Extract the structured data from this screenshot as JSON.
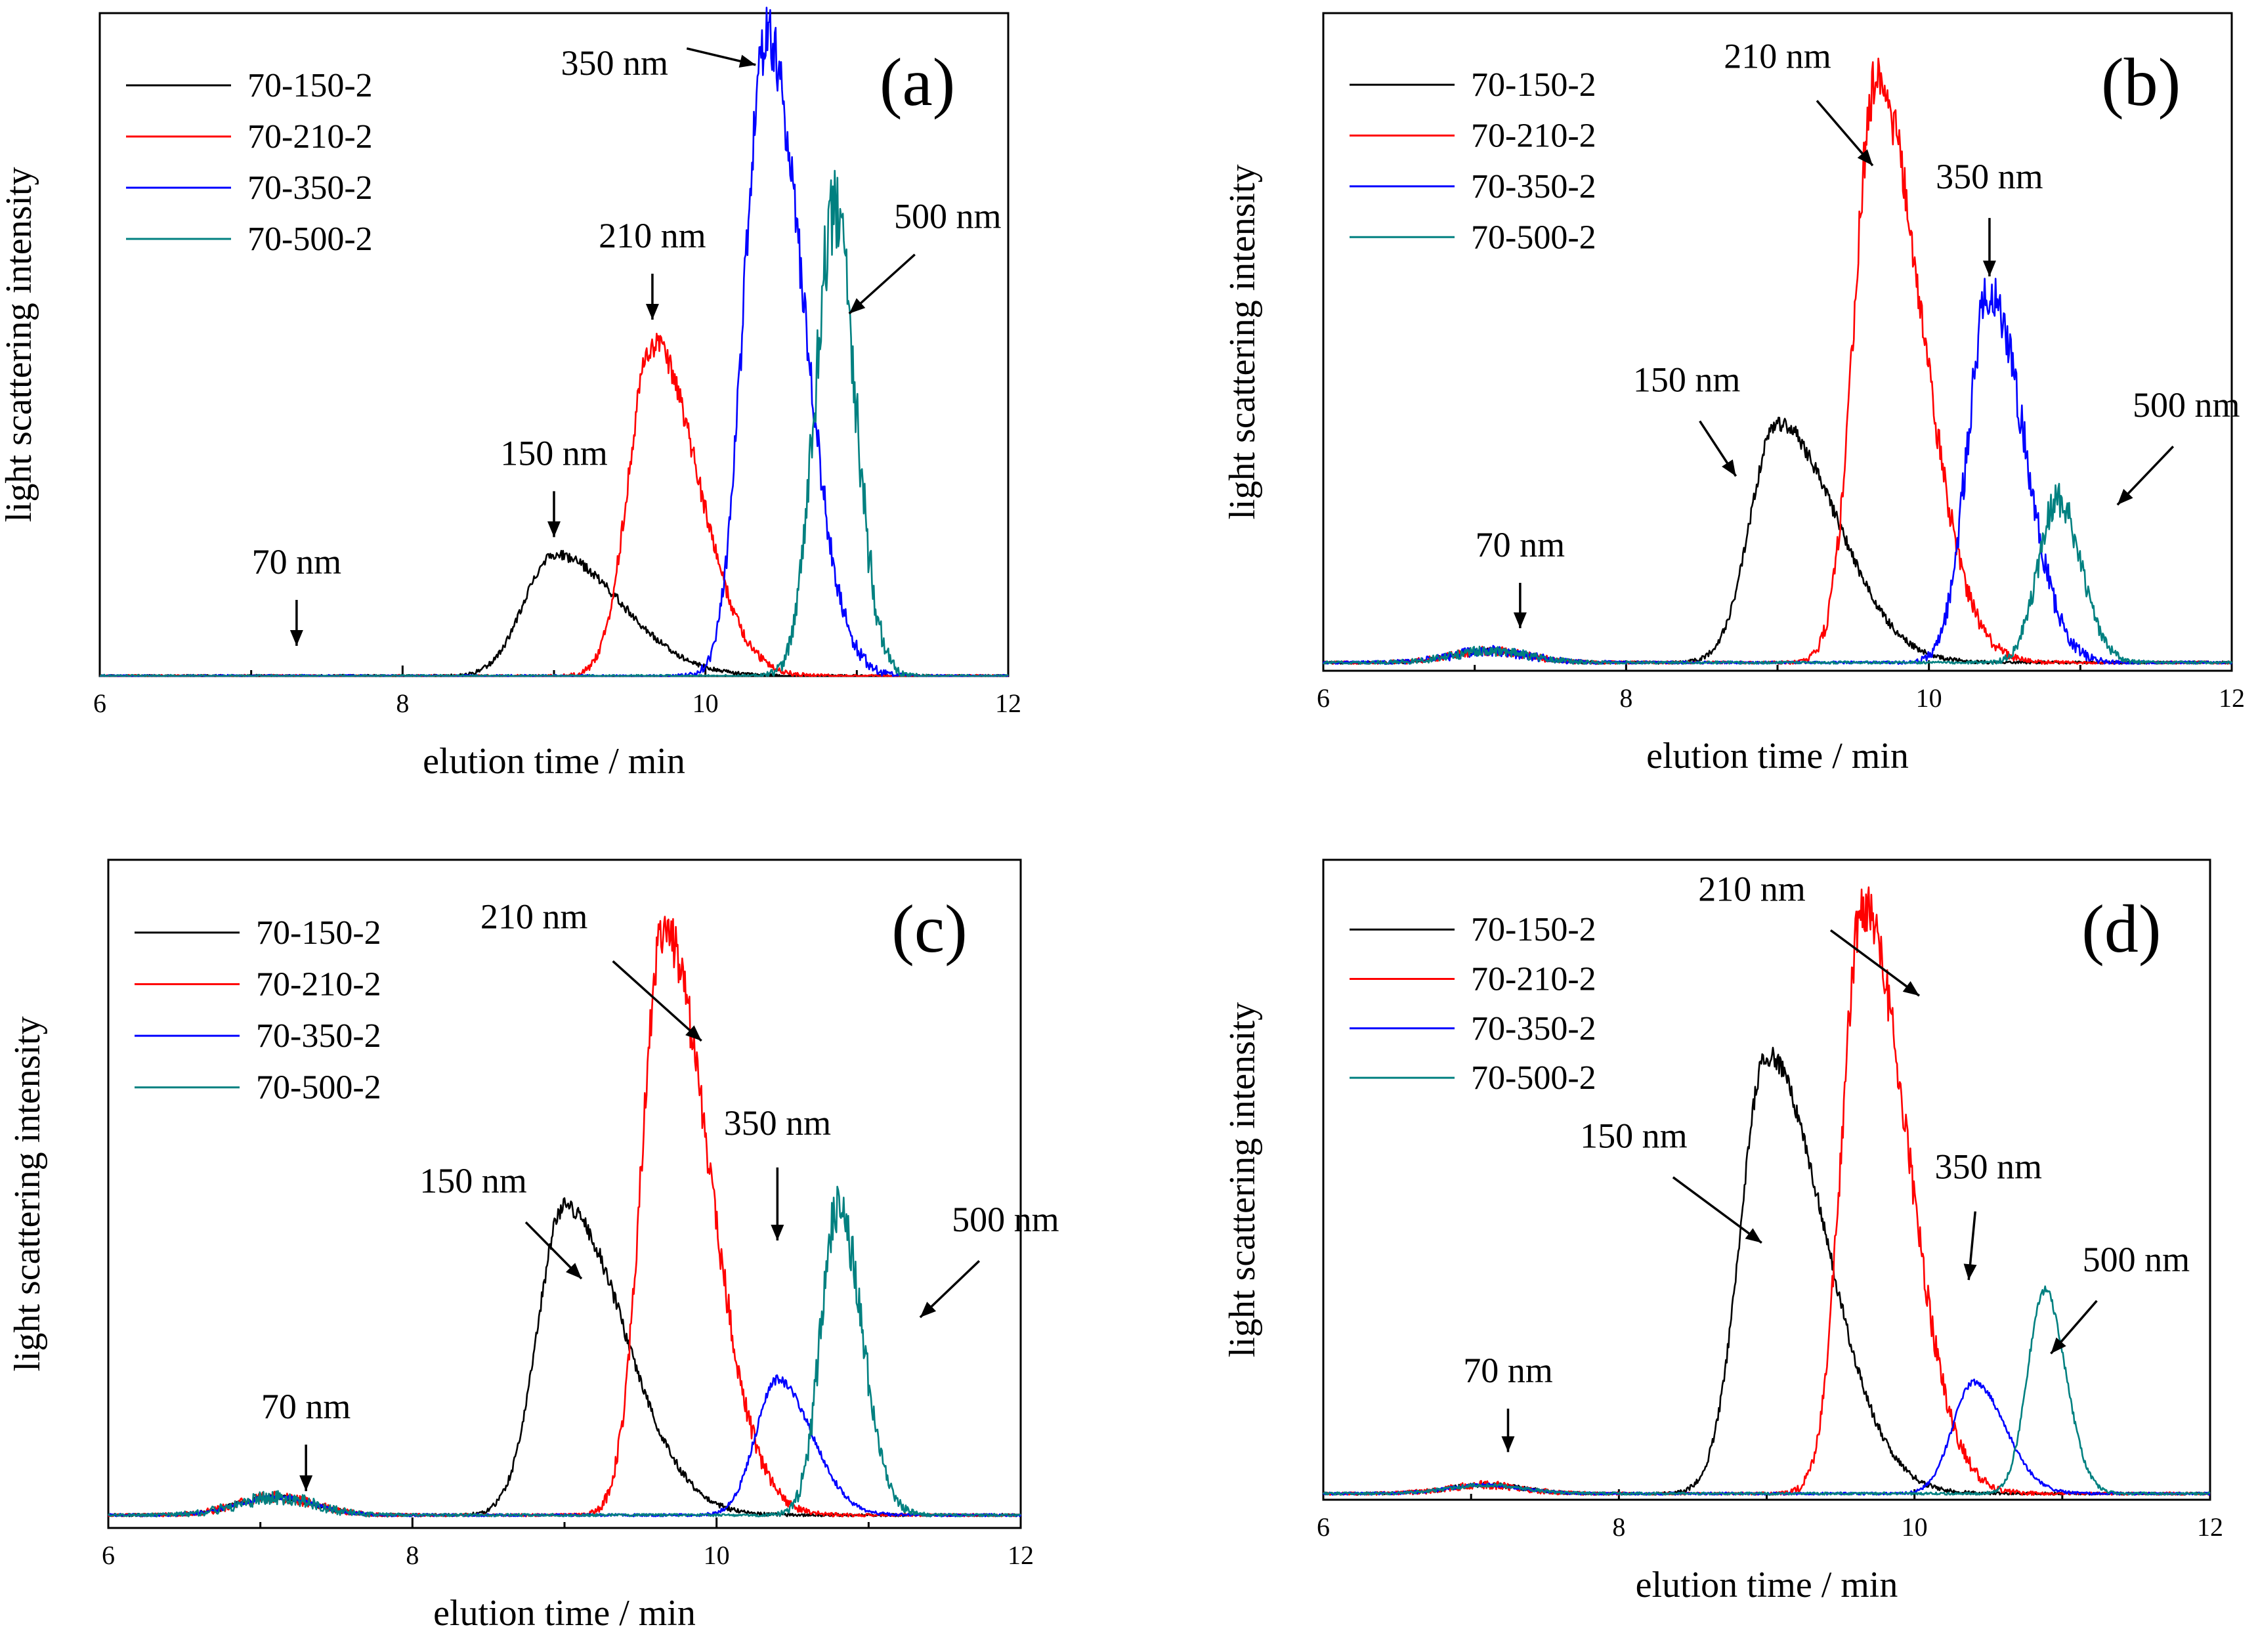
{
  "colors": {
    "70-150-2": "#000000",
    "70-210-2": "#ff0000",
    "70-350-2": "#0000ff",
    "70-500-2": "#008080"
  },
  "chart_data": [
    {
      "id": "a",
      "type": "line",
      "panel_label": "(a)",
      "xlabel": "elution time / min",
      "ylabel": "light scattering intensity",
      "xlim": [
        6,
        12
      ],
      "x_ticks": [
        6,
        8,
        10,
        12
      ],
      "ylim": [
        0,
        1.0
      ],
      "legend": [
        "70-150-2",
        "70-210-2",
        "70-350-2",
        "70-500-2"
      ],
      "legend_position": "top-left",
      "series": [
        {
          "name": "70-150-2",
          "peak_x": 9.0,
          "peak_y": 0.19,
          "baseline_y": 0.0,
          "rise": 0.28,
          "tail": 0.62,
          "noise": 0.006
        },
        {
          "name": "70-210-2",
          "peak_x": 9.65,
          "peak_y": 0.52,
          "baseline_y": 0.0,
          "rise": 0.22,
          "tail": 0.42,
          "noise": 0.02
        },
        {
          "name": "70-350-2",
          "peak_x": 10.4,
          "peak_y": 1.0,
          "baseline_y": 0.0,
          "rise": 0.2,
          "tail": 0.34,
          "noise": 0.05
        },
        {
          "name": "70-500-2",
          "peak_x": 10.85,
          "peak_y": 0.72,
          "baseline_y": 0.0,
          "rise": 0.18,
          "tail": 0.2,
          "noise": 0.07
        }
      ],
      "annotations": [
        {
          "text": "70 nm",
          "x": 7.3,
          "y": 0.16
        },
        {
          "text": "150 nm",
          "x": 9.0,
          "y": 0.33
        },
        {
          "text": "210 nm",
          "x": 9.65,
          "y": 0.67
        },
        {
          "text": "350 nm",
          "x": 9.4,
          "y": 0.94
        },
        {
          "text": "500 nm",
          "x": 11.6,
          "y": 0.7
        }
      ]
    },
    {
      "id": "b",
      "type": "line",
      "panel_label": "(b)",
      "xlabel": "elution time / min",
      "ylabel": "light scattering intensity",
      "xlim": [
        6,
        12
      ],
      "x_ticks": [
        6,
        8,
        10,
        12
      ],
      "ylim": [
        0,
        1.0
      ],
      "legend": [
        "70-150-2",
        "70-210-2",
        "70-350-2",
        "70-500-2"
      ],
      "legend_position": "top-left",
      "series": [
        {
          "name": "70-150-2",
          "peak_x": 9.0,
          "peak_y": 0.39,
          "baseline_y": 0.013,
          "rise": 0.25,
          "tail": 0.55,
          "noise": 0.012
        },
        {
          "name": "70-210-2",
          "peak_x": 9.65,
          "peak_y": 0.93,
          "baseline_y": 0.013,
          "rise": 0.2,
          "tail": 0.42,
          "noise": 0.04
        },
        {
          "name": "70-350-2",
          "peak_x": 10.4,
          "peak_y": 0.6,
          "baseline_y": 0.013,
          "rise": 0.2,
          "tail": 0.32,
          "noise": 0.04
        },
        {
          "name": "70-500-2",
          "peak_x": 10.85,
          "peak_y": 0.27,
          "baseline_y": 0.013,
          "rise": 0.18,
          "tail": 0.22,
          "noise": 0.025
        }
      ],
      "annotations": [
        {
          "text": "70 nm",
          "x": 7.3,
          "y": 0.18
        },
        {
          "text": "150 nm",
          "x": 8.4,
          "y": 0.44
        },
        {
          "text": "210 nm",
          "x": 9.0,
          "y": 0.95
        },
        {
          "text": "350 nm",
          "x": 10.4,
          "y": 0.76
        },
        {
          "text": "500 nm",
          "x": 11.7,
          "y": 0.4
        }
      ]
    },
    {
      "id": "c",
      "type": "line",
      "panel_label": "(c)",
      "xlabel": "elution time / min",
      "ylabel": "light scattering intensity",
      "xlim": [
        6,
        12
      ],
      "x_ticks": [
        6,
        8,
        10,
        12
      ],
      "ylim": [
        0,
        1.0
      ],
      "legend": [
        "70-150-2",
        "70-210-2",
        "70-350-2",
        "70-500-2"
      ],
      "legend_position": "top-left",
      "series": [
        {
          "name": "70-150-2",
          "peak_x": 9.0,
          "peak_y": 0.5,
          "baseline_y": 0.02,
          "rise": 0.25,
          "tail": 0.55,
          "noise": 0.012
        },
        {
          "name": "70-210-2",
          "peak_x": 9.65,
          "peak_y": 0.93,
          "baseline_y": 0.02,
          "rise": 0.2,
          "tail": 0.42,
          "noise": 0.04
        },
        {
          "name": "70-350-2",
          "peak_x": 10.4,
          "peak_y": 0.23,
          "baseline_y": 0.02,
          "rise": 0.2,
          "tail": 0.32,
          "noise": 0.006
        },
        {
          "name": "70-500-2",
          "peak_x": 10.8,
          "peak_y": 0.5,
          "baseline_y": 0.02,
          "rise": 0.16,
          "tail": 0.22,
          "noise": 0.04
        }
      ],
      "annotations": [
        {
          "text": "70 nm",
          "x": 7.3,
          "y": 0.17
        },
        {
          "text": "150 nm",
          "x": 8.4,
          "y": 0.52
        },
        {
          "text": "210 nm",
          "x": 8.8,
          "y": 0.93
        },
        {
          "text": "350 nm",
          "x": 10.4,
          "y": 0.61
        },
        {
          "text": "500 nm",
          "x": 11.9,
          "y": 0.46
        }
      ]
    },
    {
      "id": "d",
      "type": "line",
      "panel_label": "(d)",
      "xlabel": "elution time / min",
      "ylabel": "light scattering intensity",
      "xlim": [
        6,
        12
      ],
      "x_ticks": [
        6,
        8,
        10,
        12
      ],
      "ylim": [
        0,
        1.0
      ],
      "legend": [
        "70-150-2",
        "70-210-2",
        "70-350-2",
        "70-500-2"
      ],
      "legend_position": "top-left",
      "series": [
        {
          "name": "70-150-2",
          "peak_x": 9.0,
          "peak_y": 0.72,
          "baseline_y": 0.01,
          "rise": 0.25,
          "tail": 0.55,
          "noise": 0.015
        },
        {
          "name": "70-210-2",
          "peak_x": 9.65,
          "peak_y": 0.96,
          "baseline_y": 0.01,
          "rise": 0.2,
          "tail": 0.42,
          "noise": 0.04
        },
        {
          "name": "70-350-2",
          "peak_x": 10.4,
          "peak_y": 0.19,
          "baseline_y": 0.01,
          "rise": 0.2,
          "tail": 0.3,
          "noise": 0.003
        },
        {
          "name": "70-500-2",
          "peak_x": 10.88,
          "peak_y": 0.34,
          "baseline_y": 0.01,
          "rise": 0.16,
          "tail": 0.2,
          "noise": 0.006
        }
      ],
      "annotations": [
        {
          "text": "70 nm",
          "x": 7.25,
          "y": 0.19
        },
        {
          "text": "150 nm",
          "x": 8.1,
          "y": 0.57
        },
        {
          "text": "210 nm",
          "x": 8.9,
          "y": 0.97
        },
        {
          "text": "350 nm",
          "x": 10.5,
          "y": 0.52
        },
        {
          "text": "500 nm",
          "x": 11.5,
          "y": 0.37
        }
      ]
    }
  ]
}
